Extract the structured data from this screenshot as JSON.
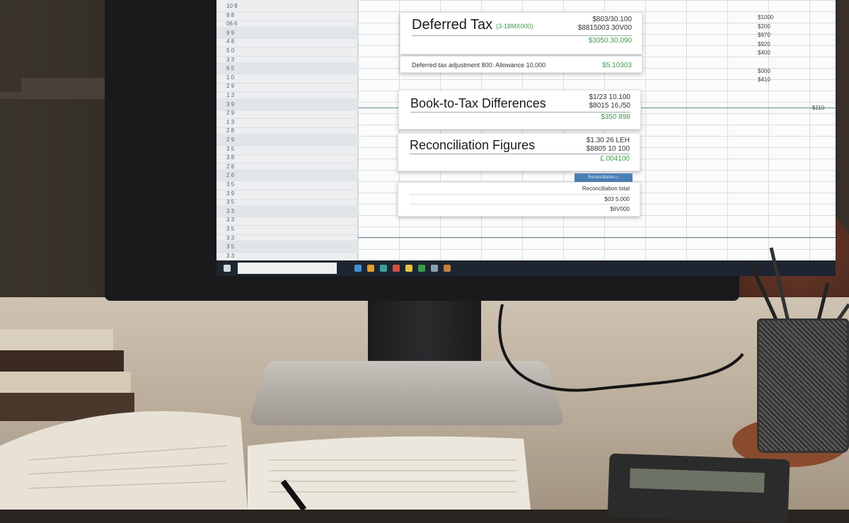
{
  "scene": "desk-with-monitor",
  "spreadsheet": {
    "row_numbers": [
      "10 8",
      "8 8",
      "06 6",
      "9 9",
      "4 8",
      "5 0",
      "3 3",
      "6 5",
      "1 0",
      "2 9",
      "1 3",
      "3 9",
      "2 9",
      "1 3",
      "2 8",
      "2 9",
      "3 5",
      "3 8",
      "2 8",
      "2 6",
      "3 5",
      "3 9",
      "3 5",
      "3 3",
      "3 3",
      "3 5",
      "3 3",
      "3 5",
      "3 3"
    ],
    "right_column_values": [
      "$1000",
      "$200",
      "$970",
      "$920",
      "$400",
      "",
      "$000",
      "$410"
    ],
    "status_value": "$110"
  },
  "cards": [
    {
      "title": "Deferred Tax",
      "tag": "(3-18MX000)",
      "amounts": [
        "$803/30.100",
        "$8815003 30V00"
      ],
      "highlight": "$3050.30.090"
    },
    {
      "summary": "Deferred tax adjustment 800: Allowance 10,000",
      "highlight": "$5.10303"
    },
    {
      "title": "Book-to-Tax Differences",
      "amounts": [
        "$1/23 10.100",
        "$8015 16,/50"
      ],
      "highlight": "$350 898"
    },
    {
      "title": "Reconciliation Figures",
      "amounts": [
        "$1.30 26 LEH",
        "$8805 10 100"
      ],
      "highlight": "£.004100"
    },
    {
      "button": "Reconciliation ▷",
      "rows": [
        [
          "",
          "Reconciliation total"
        ],
        [
          "",
          "$03 5.000"
        ],
        [
          "",
          "$6V000"
        ]
      ]
    }
  ],
  "colors": {
    "accent_green": "#3e9a4e",
    "button_blue": "#4a7fb5",
    "taskbar": "#1e2530"
  }
}
